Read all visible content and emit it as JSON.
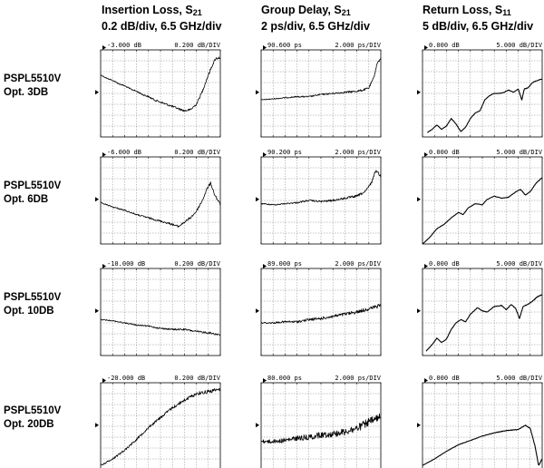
{
  "columns": [
    {
      "title": "Insertion Loss, S",
      "sub": "21",
      "scale": "0.2 dB/div, 6.5 GHz/div"
    },
    {
      "title": "Group Delay, S",
      "sub": "21",
      "scale": "2 ps/div, 6.5 GHz/div"
    },
    {
      "title": "Return Loss, S",
      "sub": "11",
      "scale": "5 dB/div, 6.5 GHz/div"
    }
  ],
  "rows": [
    {
      "model": "PSPL5510V",
      "option": "Opt. 3DB"
    },
    {
      "model": "PSPL5510V",
      "option": "Opt. 6DB"
    },
    {
      "model": "PSPL5510V",
      "option": "Opt. 10DB"
    },
    {
      "model": "PSPL5510V",
      "option": "Opt. 20DB"
    }
  ],
  "chart_data": {
    "type": "line",
    "grid": true,
    "x_divisions": 10,
    "y_divisions": 8,
    "x_scale": "6.5 GHz/div",
    "panels": [
      {
        "row": 0,
        "col": 0,
        "ref_label": "-3.000 dB",
        "scale_label": "0.200 dB/DIV",
        "ref_value": -3.0,
        "per_div": 0.2,
        "unit": "dB",
        "trace": [
          [
            0,
            2.3
          ],
          [
            0.5,
            2.6
          ],
          [
            1,
            2.8
          ],
          [
            1.5,
            3.1
          ],
          [
            2,
            3.3
          ],
          [
            2.5,
            3.6
          ],
          [
            3,
            3.8
          ],
          [
            3.5,
            4.1
          ],
          [
            4,
            4.3
          ],
          [
            4.5,
            4.6
          ],
          [
            5,
            4.8
          ],
          [
            5.5,
            5.0
          ],
          [
            6,
            5.2
          ],
          [
            6.5,
            5.4
          ],
          [
            7,
            5.6
          ],
          [
            7.5,
            5.5
          ],
          [
            8,
            5.0
          ],
          [
            8.5,
            3.8
          ],
          [
            9,
            2.3
          ],
          [
            9.3,
            1.5
          ],
          [
            9.6,
            0.8
          ],
          [
            10,
            0.7
          ]
        ],
        "noise": 0.12
      },
      {
        "row": 0,
        "col": 1,
        "ref_label": "90.600 ps",
        "scale_label": "2.000 ps/DIV",
        "ref_value": 90.6,
        "per_div": 2.0,
        "unit": "ps",
        "trace": [
          [
            0,
            4.6
          ],
          [
            1,
            4.5
          ],
          [
            2,
            4.4
          ],
          [
            3,
            4.3
          ],
          [
            4,
            4.3
          ],
          [
            5,
            4.1
          ],
          [
            6,
            4.0
          ],
          [
            7,
            3.9
          ],
          [
            8,
            3.8
          ],
          [
            8.5,
            3.7
          ],
          [
            9,
            3.5
          ],
          [
            9.4,
            2.6
          ],
          [
            9.7,
            1.2
          ],
          [
            10,
            0.8
          ]
        ],
        "noise": 0.1
      },
      {
        "row": 0,
        "col": 2,
        "ref_label": "0.000 dB",
        "scale_label": "5.000 dB/DIV",
        "ref_value": 0.0,
        "per_div": 5.0,
        "unit": "dB",
        "trace": [
          [
            0.4,
            7.6
          ],
          [
            0.8,
            7.3
          ],
          [
            1.2,
            6.9
          ],
          [
            1.6,
            7.3
          ],
          [
            2.0,
            7.0
          ],
          [
            2.4,
            6.3
          ],
          [
            2.8,
            6.8
          ],
          [
            3.2,
            7.5
          ],
          [
            3.6,
            7.1
          ],
          [
            4.0,
            6.3
          ],
          [
            4.4,
            5.8
          ],
          [
            4.8,
            5.6
          ],
          [
            5.2,
            4.6
          ],
          [
            5.6,
            4.2
          ],
          [
            6.0,
            4.0
          ],
          [
            6.4,
            4.0
          ],
          [
            6.8,
            3.9
          ],
          [
            7.2,
            3.7
          ],
          [
            7.6,
            3.9
          ],
          [
            8.0,
            3.6
          ],
          [
            8.3,
            4.6
          ],
          [
            8.5,
            3.6
          ],
          [
            8.8,
            3.5
          ],
          [
            9.2,
            3.0
          ],
          [
            9.6,
            2.8
          ],
          [
            10,
            2.7
          ]
        ],
        "noise": 0.03
      },
      {
        "row": 1,
        "col": 0,
        "ref_label": "-6.000 dB",
        "scale_label": "0.200 dB/DIV",
        "ref_value": -6.0,
        "per_div": 0.2,
        "unit": "dB",
        "trace": [
          [
            0,
            4.2
          ],
          [
            1,
            4.6
          ],
          [
            2,
            4.9
          ],
          [
            3,
            5.3
          ],
          [
            4,
            5.6
          ],
          [
            5,
            5.9
          ],
          [
            6,
            6.2
          ],
          [
            6.5,
            6.4
          ],
          [
            7,
            6.0
          ],
          [
            7.5,
            5.6
          ],
          [
            8,
            5.0
          ],
          [
            8.5,
            4.0
          ],
          [
            8.9,
            2.9
          ],
          [
            9.2,
            2.4
          ],
          [
            9.5,
            3.4
          ],
          [
            10,
            4.4
          ]
        ],
        "noise": 0.12
      },
      {
        "row": 1,
        "col": 1,
        "ref_label": "90.200 ps",
        "scale_label": "2.000 ps/DIV",
        "ref_value": 90.2,
        "per_div": 2.0,
        "unit": "ps",
        "trace": [
          [
            0,
            4.3
          ],
          [
            1,
            4.4
          ],
          [
            2,
            4.3
          ],
          [
            3,
            4.2
          ],
          [
            4,
            4.0
          ],
          [
            5,
            4.1
          ],
          [
            6,
            4.0
          ],
          [
            7,
            3.8
          ],
          [
            8,
            3.6
          ],
          [
            8.7,
            3.2
          ],
          [
            9.2,
            2.4
          ],
          [
            9.6,
            1.2
          ],
          [
            10,
            1.8
          ]
        ],
        "noise": 0.12
      },
      {
        "row": 1,
        "col": 2,
        "ref_label": "0.000 dB",
        "scale_label": "5.000 dB/DIV",
        "ref_value": 0.0,
        "per_div": 5.0,
        "unit": "dB",
        "trace": [
          [
            0,
            8.0
          ],
          [
            0.6,
            7.4
          ],
          [
            1.2,
            6.6
          ],
          [
            1.8,
            6.2
          ],
          [
            2.4,
            5.6
          ],
          [
            3.0,
            5.1
          ],
          [
            3.4,
            5.3
          ],
          [
            3.8,
            4.7
          ],
          [
            4.4,
            4.3
          ],
          [
            5.0,
            4.4
          ],
          [
            5.4,
            3.9
          ],
          [
            6.0,
            3.6
          ],
          [
            6.6,
            3.8
          ],
          [
            7.2,
            3.7
          ],
          [
            7.8,
            3.2
          ],
          [
            8.2,
            3.0
          ],
          [
            8.6,
            3.5
          ],
          [
            9.0,
            3.2
          ],
          [
            9.5,
            2.4
          ],
          [
            10,
            1.9
          ]
        ],
        "noise": 0.03
      },
      {
        "row": 2,
        "col": 0,
        "ref_label": "-10.000 dB",
        "scale_label": "0.200 dB/DIV",
        "ref_value": -10.0,
        "per_div": 0.2,
        "unit": "dB",
        "trace": [
          [
            0,
            4.7
          ],
          [
            1,
            4.8
          ],
          [
            2,
            5.0
          ],
          [
            3,
            5.2
          ],
          [
            4,
            5.3
          ],
          [
            5,
            5.5
          ],
          [
            6,
            5.6
          ],
          [
            7,
            5.6
          ],
          [
            8,
            5.8
          ],
          [
            9,
            5.9
          ],
          [
            10,
            6.1
          ]
        ],
        "noise": 0.1
      },
      {
        "row": 2,
        "col": 1,
        "ref_label": "89.000 ps",
        "scale_label": "2.000 ps/DIV",
        "ref_value": 89.0,
        "per_div": 2.0,
        "unit": "ps",
        "trace": [
          [
            0,
            5.0
          ],
          [
            1,
            5.0
          ],
          [
            2,
            4.9
          ],
          [
            3,
            4.9
          ],
          [
            4,
            4.7
          ],
          [
            5,
            4.6
          ],
          [
            6,
            4.4
          ],
          [
            7,
            4.2
          ],
          [
            8,
            4.0
          ],
          [
            9,
            3.7
          ],
          [
            10,
            3.4
          ]
        ],
        "noise": 0.18
      },
      {
        "row": 2,
        "col": 2,
        "ref_label": "0.000 dB",
        "scale_label": "5.000 dB/DIV",
        "ref_value": 0.0,
        "per_div": 5.0,
        "unit": "dB",
        "trace": [
          [
            0.3,
            7.6
          ],
          [
            0.8,
            7.0
          ],
          [
            1.2,
            6.4
          ],
          [
            1.6,
            6.8
          ],
          [
            2.0,
            6.5
          ],
          [
            2.4,
            5.6
          ],
          [
            2.8,
            5.0
          ],
          [
            3.2,
            4.7
          ],
          [
            3.6,
            4.9
          ],
          [
            4.0,
            4.2
          ],
          [
            4.6,
            3.6
          ],
          [
            5.0,
            3.9
          ],
          [
            5.4,
            4.0
          ],
          [
            6.0,
            3.5
          ],
          [
            6.6,
            3.4
          ],
          [
            7.0,
            3.8
          ],
          [
            7.4,
            3.3
          ],
          [
            7.8,
            3.7
          ],
          [
            8.1,
            4.6
          ],
          [
            8.4,
            3.5
          ],
          [
            8.8,
            3.3
          ],
          [
            9.2,
            3.0
          ],
          [
            9.6,
            2.6
          ],
          [
            10,
            2.4
          ]
        ],
        "noise": 0.03
      },
      {
        "row": 3,
        "col": 0,
        "ref_label": "-20.000 dB",
        "scale_label": "0.200 dB/DIV",
        "ref_value": -20.0,
        "per_div": 0.2,
        "unit": "dB",
        "trace": [
          [
            0,
            7.6
          ],
          [
            1,
            7.0
          ],
          [
            2,
            6.2
          ],
          [
            3,
            5.2
          ],
          [
            4,
            4.1
          ],
          [
            5,
            3.2
          ],
          [
            6,
            2.3
          ],
          [
            7,
            1.6
          ],
          [
            8,
            1.0
          ],
          [
            9,
            0.8
          ],
          [
            10,
            0.6
          ]
        ],
        "noise": 0.18
      },
      {
        "row": 3,
        "col": 1,
        "ref_label": "80.000 ps",
        "scale_label": "2.000 ps/DIV",
        "ref_value": 80.0,
        "per_div": 2.0,
        "unit": "ps",
        "trace": [
          [
            0,
            5.4
          ],
          [
            1,
            5.4
          ],
          [
            2,
            5.3
          ],
          [
            3,
            5.1
          ],
          [
            4,
            5.0
          ],
          [
            5,
            4.8
          ],
          [
            6,
            4.7
          ],
          [
            7,
            4.5
          ],
          [
            8,
            4.2
          ],
          [
            9,
            3.6
          ],
          [
            10,
            3.2
          ]
        ],
        "noise": 0.4
      },
      {
        "row": 3,
        "col": 2,
        "ref_label": "0.000 dB",
        "scale_label": "5.000 dB/DIV",
        "ref_value": 0.0,
        "per_div": 5.0,
        "unit": "dB",
        "trace": [
          [
            0,
            7.6
          ],
          [
            1,
            7.0
          ],
          [
            2,
            6.3
          ],
          [
            3,
            5.7
          ],
          [
            4,
            5.3
          ],
          [
            5,
            4.9
          ],
          [
            6,
            4.6
          ],
          [
            7,
            4.4
          ],
          [
            8,
            4.3
          ],
          [
            8.6,
            3.9
          ],
          [
            9.0,
            4.2
          ],
          [
            9.4,
            5.8
          ],
          [
            9.7,
            7.6
          ],
          [
            10,
            7.0
          ]
        ],
        "noise": 0.03
      }
    ]
  }
}
